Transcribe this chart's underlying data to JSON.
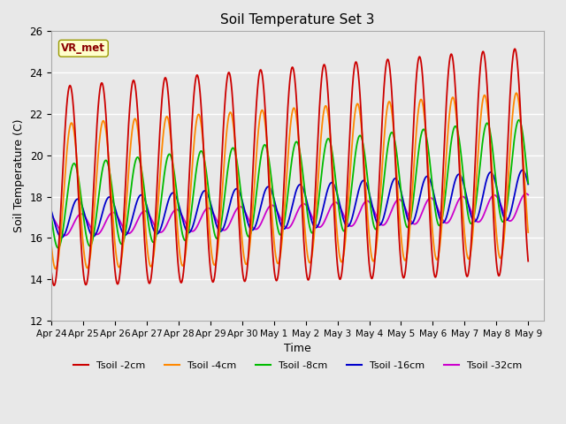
{
  "title": "Soil Temperature Set 3",
  "xlabel": "Time",
  "ylabel": "Soil Temperature (C)",
  "ylim": [
    12,
    26
  ],
  "annotation": "VR_met",
  "background_color": "#e8e8e8",
  "grid_color": "white",
  "colors": {
    "2cm": "#cc0000",
    "4cm": "#ff8800",
    "8cm": "#00bb00",
    "16cm": "#0000cc",
    "32cm": "#cc00cc"
  },
  "tick_labels": [
    "Apr 24",
    "Apr 25",
    "Apr 26",
    "Apr 27",
    "Apr 28",
    "Apr 29",
    "Apr 30",
    "May 1",
    "May 2",
    "May 3",
    "May 4",
    "May 5",
    "May 6",
    "May 7",
    "May 8",
    "May 9"
  ]
}
